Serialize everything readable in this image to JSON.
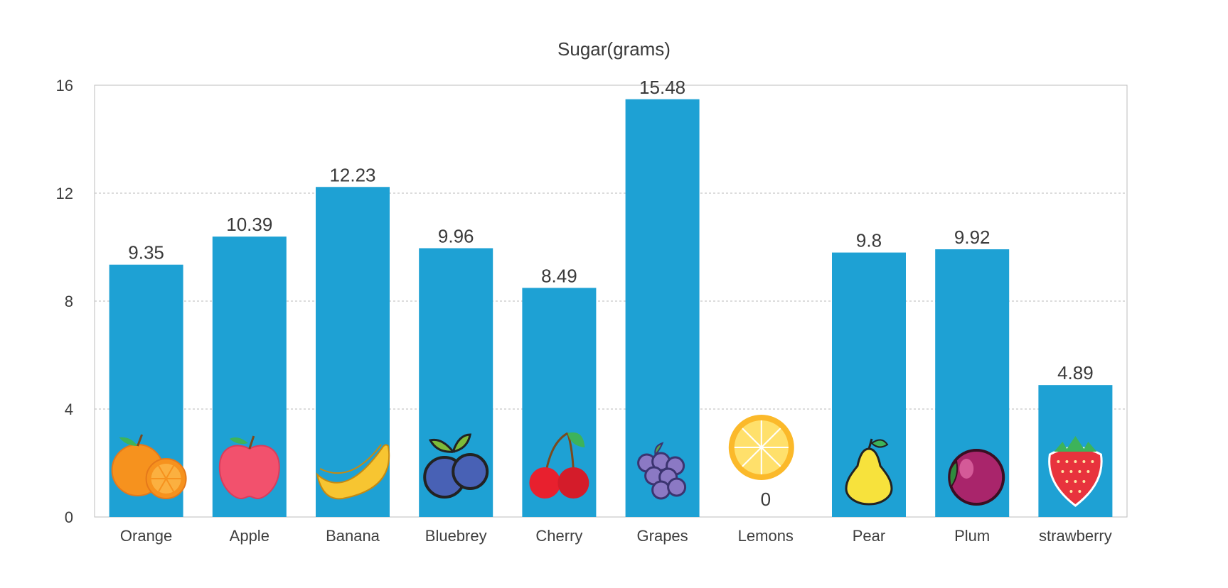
{
  "colors": {
    "bar": "#1ea1d4",
    "grid": "#b8b8b8",
    "frame": "#bdbdbd",
    "text": "#3a3a3a",
    "background": "#ffffff"
  },
  "chart_data": {
    "type": "bar",
    "title": "Sugar(grams)",
    "xlabel": "",
    "ylabel": "",
    "categories": [
      "Orange",
      "Apple",
      "Banana",
      "Bluebrey",
      "Cherry",
      "Grapes",
      "Lemons",
      "Pear",
      "Plum",
      "strawberry"
    ],
    "values": [
      9.35,
      10.39,
      12.23,
      9.96,
      8.49,
      15.48,
      0,
      9.8,
      9.92,
      4.89
    ],
    "value_labels": [
      "9.35",
      "10.39",
      "12.23",
      "9.96",
      "8.49",
      "15.48",
      "0",
      "9.8",
      "9.92",
      "4.89"
    ],
    "icons": [
      "orange-icon",
      "apple-icon",
      "banana-icon",
      "blueberry-icon",
      "cherry-icon",
      "grapes-icon",
      "lemon-icon",
      "pear-icon",
      "plum-icon",
      "strawberry-icon"
    ],
    "ylim": [
      0,
      16
    ],
    "yticks": [
      0,
      4,
      8,
      12,
      16
    ],
    "ytick_labels": [
      "0",
      "4",
      "8",
      "12",
      "16"
    ],
    "grid": true,
    "grid_style": "dotted horizontal",
    "legend": "none"
  }
}
